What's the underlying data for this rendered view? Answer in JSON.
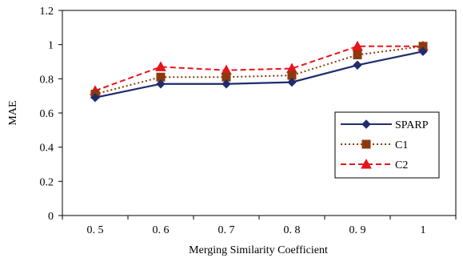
{
  "chart_data": {
    "type": "line",
    "xlabel": "Merging Similarity Coefficient",
    "ylabel": "MAE",
    "x_tick_labels": [
      "0. 5",
      "0. 6",
      "0. 7",
      "0. 8",
      "0. 9",
      "1"
    ],
    "x": [
      0.5,
      0.6,
      0.7,
      0.8,
      0.9,
      1.0
    ],
    "y_ticks": [
      "0",
      "0.2",
      "0.4",
      "0.6",
      "0.8",
      "1",
      "1.2"
    ],
    "y_tick_values": [
      0,
      0.2,
      0.4,
      0.6,
      0.8,
      1.0,
      1.2
    ],
    "ylim": [
      0,
      1.2
    ],
    "grid": false,
    "legend_position": "center-right",
    "series": [
      {
        "name": "SPARP",
        "values": [
          0.69,
          0.77,
          0.77,
          0.78,
          0.88,
          0.96
        ],
        "color": "#1f2d6b",
        "marker": "diamond",
        "line": "solid"
      },
      {
        "name": "C1",
        "values": [
          0.71,
          0.81,
          0.81,
          0.82,
          0.94,
          0.99
        ],
        "color": "#8b3a0f",
        "marker": "square",
        "line": "dotted"
      },
      {
        "name": "C2",
        "values": [
          0.73,
          0.87,
          0.85,
          0.86,
          0.99,
          0.99
        ],
        "color": "#e8141c",
        "marker": "triangle",
        "line": "dashed"
      }
    ]
  }
}
